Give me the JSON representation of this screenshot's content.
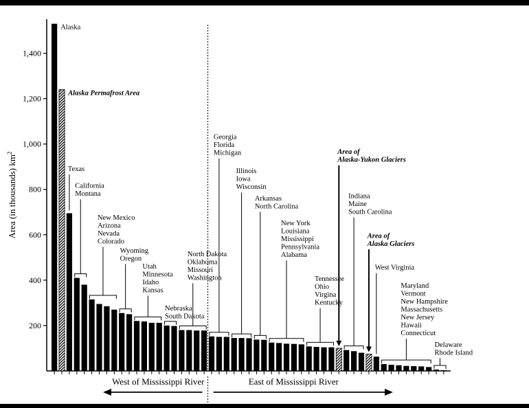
{
  "chart_data": {
    "type": "bar",
    "ylabel": "Area (in thousands) km",
    "ylabel_superscript": "2",
    "ylim": [
      0,
      1550
    ],
    "yticks": [
      "200",
      "400",
      "600",
      "800",
      "1,000",
      "1,200",
      "1,400"
    ],
    "ytick_values": [
      200,
      400,
      600,
      800,
      1000,
      1200,
      1400
    ],
    "bars": [
      {
        "value": 1530,
        "kind": "state"
      },
      {
        "value": 1240,
        "kind": "special"
      },
      {
        "value": 695,
        "kind": "state"
      },
      {
        "value": 410,
        "kind": "state"
      },
      {
        "value": 380,
        "kind": "state"
      },
      {
        "value": 315,
        "kind": "state"
      },
      {
        "value": 295,
        "kind": "state"
      },
      {
        "value": 285,
        "kind": "state"
      },
      {
        "value": 270,
        "kind": "state"
      },
      {
        "value": 255,
        "kind": "state"
      },
      {
        "value": 250,
        "kind": "state"
      },
      {
        "value": 220,
        "kind": "state"
      },
      {
        "value": 218,
        "kind": "state"
      },
      {
        "value": 212,
        "kind": "state"
      },
      {
        "value": 212,
        "kind": "state"
      },
      {
        "value": 200,
        "kind": "state"
      },
      {
        "value": 198,
        "kind": "state"
      },
      {
        "value": 180,
        "kind": "state"
      },
      {
        "value": 180,
        "kind": "state"
      },
      {
        "value": 178,
        "kind": "state"
      },
      {
        "value": 178,
        "kind": "state"
      },
      {
        "value": 152,
        "kind": "state"
      },
      {
        "value": 150,
        "kind": "state"
      },
      {
        "value": 150,
        "kind": "state"
      },
      {
        "value": 145,
        "kind": "state"
      },
      {
        "value": 145,
        "kind": "state"
      },
      {
        "value": 144,
        "kind": "state"
      },
      {
        "value": 138,
        "kind": "state"
      },
      {
        "value": 137,
        "kind": "state"
      },
      {
        "value": 125,
        "kind": "state"
      },
      {
        "value": 123,
        "kind": "state"
      },
      {
        "value": 120,
        "kind": "state"
      },
      {
        "value": 119,
        "kind": "state"
      },
      {
        "value": 117,
        "kind": "state"
      },
      {
        "value": 108,
        "kind": "state"
      },
      {
        "value": 106,
        "kind": "state"
      },
      {
        "value": 104,
        "kind": "state"
      },
      {
        "value": 104,
        "kind": "state"
      },
      {
        "value": 100,
        "kind": "special"
      },
      {
        "value": 92,
        "kind": "state"
      },
      {
        "value": 87,
        "kind": "state"
      },
      {
        "value": 80,
        "kind": "state"
      },
      {
        "value": 74,
        "kind": "special"
      },
      {
        "value": 63,
        "kind": "state"
      },
      {
        "value": 30,
        "kind": "state"
      },
      {
        "value": 27,
        "kind": "state"
      },
      {
        "value": 25,
        "kind": "state"
      },
      {
        "value": 22,
        "kind": "state"
      },
      {
        "value": 21,
        "kind": "state"
      },
      {
        "value": 20,
        "kind": "state"
      },
      {
        "value": 17,
        "kind": "state"
      },
      {
        "value": 6,
        "kind": "state"
      },
      {
        "value": 3,
        "kind": "state"
      }
    ],
    "annotations": [
      {
        "lines": [
          "Alaska"
        ],
        "bar_start": 0,
        "bar_end": 0,
        "label_value": 1530,
        "style": "plain",
        "arrow": false
      },
      {
        "lines": [
          "Alaska Permafrost Area"
        ],
        "bar_start": 1,
        "bar_end": 1,
        "label_value": 1240,
        "style": "italic",
        "arrow": false
      },
      {
        "lines": [
          "Texas"
        ],
        "bar_start": 2,
        "bar_end": 2,
        "label_value": 910,
        "style": "plain",
        "arrow": false
      },
      {
        "lines": [
          "California",
          "Montana"
        ],
        "bar_start": 3,
        "bar_end": 4,
        "label_value": 835,
        "style": "plain",
        "arrow": false
      },
      {
        "lines": [
          "New Mexico",
          "Arizona",
          "Nevada",
          "Colorado"
        ],
        "bar_start": 5,
        "bar_end": 8,
        "label_value": 695,
        "style": "plain",
        "arrow": false
      },
      {
        "lines": [
          "Wyoming",
          "Oregon"
        ],
        "bar_start": 9,
        "bar_end": 10,
        "label_value": 550,
        "style": "plain",
        "arrow": false
      },
      {
        "lines": [
          "Utah",
          "Minnesota",
          "Idaho",
          "Kansas"
        ],
        "bar_start": 11,
        "bar_end": 14,
        "label_value": 480,
        "style": "plain",
        "arrow": false
      },
      {
        "lines": [
          "Nebraska",
          "South Dakota"
        ],
        "bar_start": 15,
        "bar_end": 16,
        "label_value": 295,
        "style": "plain",
        "arrow": false
      },
      {
        "lines": [
          "North Dakota",
          "Oklahoma",
          "Missouri",
          "Washington"
        ],
        "bar_start": 17,
        "bar_end": 20,
        "label_value": 535,
        "style": "plain",
        "arrow": false
      },
      {
        "lines": [
          "Georgia",
          "Florida",
          "Michigan"
        ],
        "bar_start": 21,
        "bar_end": 23,
        "label_value": 1050,
        "style": "plain",
        "arrow": false
      },
      {
        "lines": [
          "Illinois",
          "Iowa",
          "Wisconsin"
        ],
        "bar_start": 24,
        "bar_end": 26,
        "label_value": 900,
        "style": "plain",
        "arrow": false
      },
      {
        "lines": [
          "Arkansas",
          "North Carolina"
        ],
        "bar_start": 27,
        "bar_end": 28,
        "label_value": 780,
        "style": "plain",
        "arrow": false
      },
      {
        "lines": [
          "New York",
          "Louisiana",
          "Mississippi",
          "Pennsylvania",
          "Alabama"
        ],
        "bar_start": 29,
        "bar_end": 33,
        "label_value": 670,
        "style": "plain",
        "arrow": false
      },
      {
        "lines": [
          "Tennessee",
          "Ohio",
          "Virgina",
          "Kentucky"
        ],
        "bar_start": 34,
        "bar_end": 37,
        "label_value": 425,
        "style": "plain",
        "arrow": false
      },
      {
        "lines": [
          "Area of",
          "Alaska-Yukon Glaciers"
        ],
        "bar_start": 38,
        "bar_end": 38,
        "label_value": 985,
        "style": "italic",
        "arrow": true
      },
      {
        "lines": [
          "Indiana",
          "Maine",
          "South Carolina"
        ],
        "bar_start": 39,
        "bar_end": 41,
        "label_value": 790,
        "style": "plain",
        "arrow": false
      },
      {
        "lines": [
          "Area of",
          "Alaska Glaciers"
        ],
        "bar_start": 42,
        "bar_end": 42,
        "label_value": 615,
        "style": "italic",
        "arrow": true
      },
      {
        "lines": [
          "West Virginia"
        ],
        "bar_start": 43,
        "bar_end": 43,
        "label_value": 475,
        "style": "plain",
        "arrow": false
      },
      {
        "lines": [
          "Maryland",
          "Vermont",
          "New Hampshire",
          "Massachusetts",
          "New Jersey",
          "Hawaii",
          "Connecticut"
        ],
        "bar_start": 44,
        "bar_end": 50,
        "label_value": 395,
        "style": "plain",
        "arrow": false
      },
      {
        "lines": [
          "Delaware",
          "Rhode Island"
        ],
        "bar_start": 51,
        "bar_end": 52,
        "label_value": 135,
        "style": "plain",
        "arrow": false
      }
    ],
    "regions": {
      "west": "West of Mississippi River",
      "east": "East of Mississippi River"
    }
  }
}
